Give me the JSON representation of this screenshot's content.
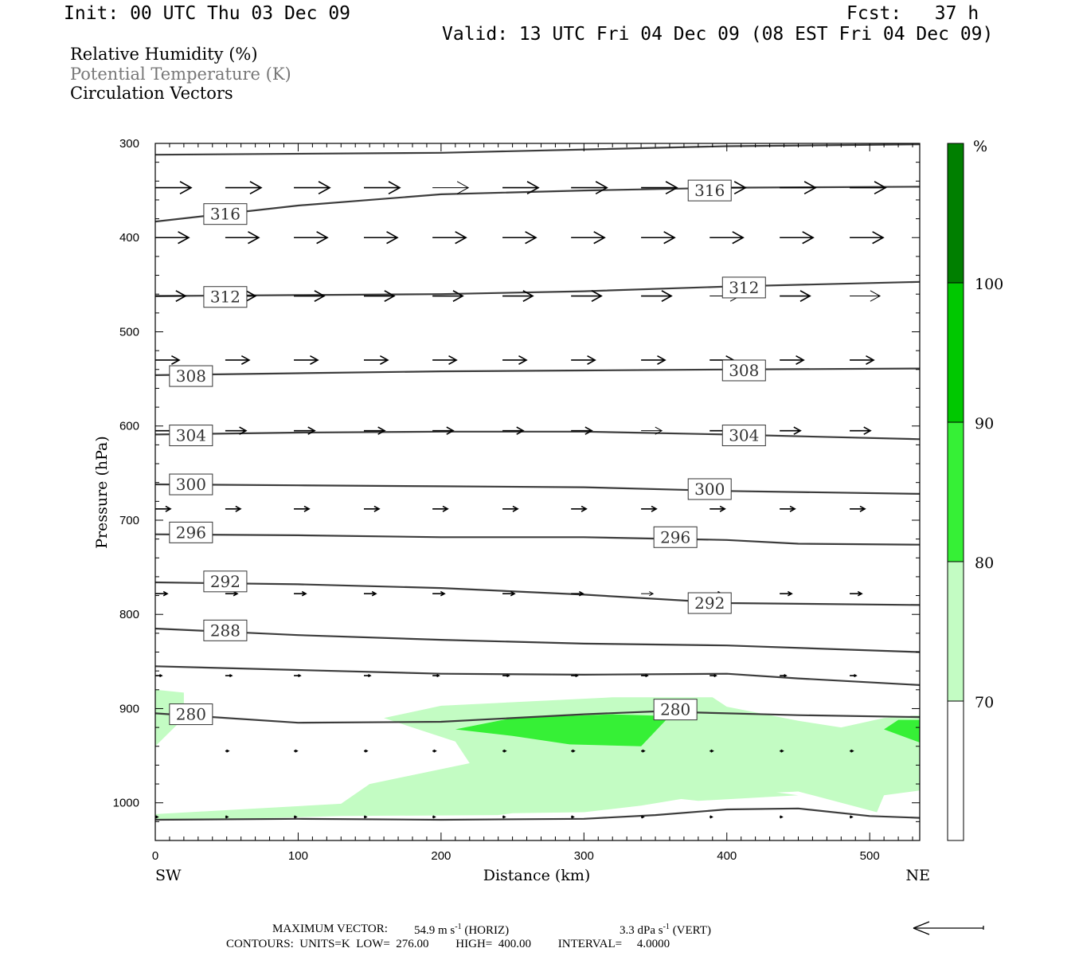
{
  "header": {
    "init": "Init: 00 UTC Thu 03 Dec 09",
    "fcst": "Fcst:   37 h",
    "valid": "Valid: 13 UTC Fri 04 Dec 09 (08 EST Fri 04 Dec 09)"
  },
  "fields": {
    "rh": "Relative Humidity (%)",
    "theta": "Potential Temperature (K)",
    "vectors": "Circulation Vectors"
  },
  "footer": {
    "maxvec_label": "MAXIMUM VECTOR:",
    "maxvec_horiz": "54.9 m s",
    "horiz_tag": "(HORIZ)",
    "maxvec_vert": "3.3 dPa s",
    "vert_tag": "(VERT)",
    "exp": "-1",
    "contours": "CONTOURS:  UNITS=K  LOW=  276.00         HIGH=  400.00         INTERVAL=     4.0000"
  },
  "colors": {
    "rh70": "#c3fcc3",
    "rh80": "#36f036",
    "rh90": "#00c800",
    "rh100": "#007f00",
    "contour": "#3c3c3c"
  },
  "chart_data": {
    "type": "cross-section",
    "xlabel": "Distance (km)",
    "ylabel": "Pressure (hPa)",
    "xlim": [
      0,
      535
    ],
    "ylim": [
      1040,
      300
    ],
    "x_ticks": [
      0,
      100,
      200,
      300,
      400,
      500
    ],
    "y_ticks": [
      300,
      400,
      500,
      600,
      700,
      800,
      900,
      1000
    ],
    "end_labels": {
      "left": "SW",
      "right": "NE"
    },
    "colorbar": {
      "unit": "%",
      "levels": [
        70,
        80,
        90,
        100
      ],
      "level_labels": [
        "70",
        "80",
        "90",
        "100"
      ]
    },
    "contour_labels": [
      {
        "text": "316",
        "x": 49,
        "p": 375
      },
      {
        "text": "316",
        "x": 388,
        "p": 350
      },
      {
        "text": "312",
        "x": 49,
        "p": 463
      },
      {
        "text": "312",
        "x": 412,
        "p": 453
      },
      {
        "text": "308",
        "x": 25,
        "p": 547
      },
      {
        "text": "308",
        "x": 412,
        "p": 541
      },
      {
        "text": "304",
        "x": 25,
        "p": 610
      },
      {
        "text": "304",
        "x": 412,
        "p": 610
      },
      {
        "text": "300",
        "x": 25,
        "p": 662
      },
      {
        "text": "300",
        "x": 388,
        "p": 667
      },
      {
        "text": "296",
        "x": 25,
        "p": 713
      },
      {
        "text": "296",
        "x": 364,
        "p": 718
      },
      {
        "text": "292",
        "x": 49,
        "p": 765
      },
      {
        "text": "292",
        "x": 388,
        "p": 788
      },
      {
        "text": "288",
        "x": 49,
        "p": 817
      },
      {
        "text": "280",
        "x": 25,
        "p": 906
      },
      {
        "text": "280",
        "x": 364,
        "p": 901
      }
    ],
    "isentropes": [
      {
        "theta": 320,
        "points": [
          [
            0,
            312
          ],
          [
            200,
            310
          ],
          [
            400,
            303
          ],
          [
            535,
            301
          ]
        ]
      },
      {
        "theta": 316,
        "points": [
          [
            0,
            383
          ],
          [
            100,
            366
          ],
          [
            200,
            354
          ],
          [
            300,
            350
          ],
          [
            400,
            347
          ],
          [
            535,
            346
          ]
        ]
      },
      {
        "theta": 312,
        "points": [
          [
            0,
            462
          ],
          [
            100,
            461
          ],
          [
            200,
            460
          ],
          [
            300,
            457
          ],
          [
            400,
            452
          ],
          [
            535,
            447
          ]
        ]
      },
      {
        "theta": 308,
        "points": [
          [
            0,
            546
          ],
          [
            100,
            544
          ],
          [
            200,
            542
          ],
          [
            300,
            541
          ],
          [
            400,
            540
          ],
          [
            535,
            539
          ]
        ]
      },
      {
        "theta": 304,
        "points": [
          [
            0,
            609
          ],
          [
            100,
            607
          ],
          [
            200,
            606
          ],
          [
            300,
            606
          ],
          [
            400,
            609
          ],
          [
            535,
            614
          ]
        ]
      },
      {
        "theta": 300,
        "points": [
          [
            0,
            662
          ],
          [
            100,
            663
          ],
          [
            200,
            664
          ],
          [
            300,
            665
          ],
          [
            400,
            669
          ],
          [
            535,
            672
          ]
        ]
      },
      {
        "theta": 296,
        "points": [
          [
            0,
            715
          ],
          [
            100,
            716
          ],
          [
            200,
            718
          ],
          [
            300,
            718
          ],
          [
            400,
            721
          ],
          [
            450,
            725
          ],
          [
            535,
            726
          ]
        ]
      },
      {
        "theta": 292,
        "points": [
          [
            0,
            766
          ],
          [
            100,
            768
          ],
          [
            200,
            772
          ],
          [
            300,
            779
          ],
          [
            400,
            788
          ],
          [
            535,
            790
          ]
        ]
      },
      {
        "theta": 288,
        "points": [
          [
            0,
            815
          ],
          [
            100,
            822
          ],
          [
            200,
            827
          ],
          [
            300,
            831
          ],
          [
            400,
            833
          ],
          [
            535,
            840
          ]
        ]
      },
      {
        "theta": 284,
        "points": [
          [
            0,
            855
          ],
          [
            100,
            859
          ],
          [
            200,
            863
          ],
          [
            300,
            864
          ],
          [
            400,
            863
          ],
          [
            450,
            868
          ],
          [
            535,
            875
          ]
        ]
      },
      {
        "theta": 280,
        "points": [
          [
            0,
            905
          ],
          [
            100,
            915
          ],
          [
            200,
            914
          ],
          [
            300,
            906
          ],
          [
            350,
            903
          ],
          [
            450,
            907
          ],
          [
            535,
            909
          ]
        ]
      },
      {
        "theta": 276,
        "points": [
          [
            0,
            1018
          ],
          [
            100,
            1017
          ],
          [
            200,
            1018
          ],
          [
            300,
            1017
          ],
          [
            350,
            1013
          ],
          [
            400,
            1007
          ],
          [
            450,
            1006
          ],
          [
            500,
            1014
          ],
          [
            535,
            1016
          ]
        ]
      }
    ],
    "rh_regions": [
      {
        "level": 70,
        "polygon": [
          [
            0,
            880
          ],
          [
            20,
            883
          ],
          [
            20,
            910
          ],
          [
            0,
            940
          ]
        ]
      },
      {
        "level": 70,
        "polygon": [
          [
            0,
            1012
          ],
          [
            130,
            1001
          ],
          [
            150,
            980
          ],
          [
            220,
            958
          ],
          [
            210,
            935
          ],
          [
            160,
            910
          ],
          [
            200,
            897
          ],
          [
            320,
            888
          ],
          [
            390,
            888
          ],
          [
            400,
            898
          ],
          [
            450,
            913
          ],
          [
            480,
            920
          ],
          [
            510,
            910
          ],
          [
            535,
            907
          ],
          [
            535,
            987
          ],
          [
            510,
            992
          ],
          [
            505,
            1010
          ],
          [
            450,
            988
          ],
          [
            380,
            993
          ],
          [
            340,
            1003
          ],
          [
            300,
            1010
          ],
          [
            250,
            1011
          ],
          [
            240,
            1013
          ],
          [
            130,
            1014
          ],
          [
            60,
            1017
          ],
          [
            0,
            1018
          ]
        ]
      },
      {
        "level": 70,
        "polygon": [
          [
            320,
            988
          ],
          [
            430,
            988
          ],
          [
            450,
            992
          ],
          [
            380,
            998
          ]
        ]
      },
      {
        "level": 80,
        "polygon": [
          [
            210,
            922
          ],
          [
            250,
            910
          ],
          [
            320,
            906
          ],
          [
            360,
            908
          ],
          [
            340,
            940
          ],
          [
            290,
            938
          ],
          [
            250,
            929
          ]
        ]
      },
      {
        "level": 80,
        "polygon": [
          [
            510,
            922
          ],
          [
            520,
            912
          ],
          [
            535,
            912
          ],
          [
            535,
            936
          ]
        ]
      }
    ],
    "vector_rows": [
      {
        "p": 347,
        "xs": [
          0,
          49,
          97,
          146,
          194,
          243,
          291,
          340,
          388,
          437,
          486
        ],
        "len": 45,
        "thin": [
          4
        ]
      },
      {
        "p": 400,
        "xs": [
          0,
          49,
          97,
          146,
          194,
          243,
          291,
          340,
          388,
          437,
          486
        ],
        "len": 42
      },
      {
        "p": 462,
        "xs": [
          0,
          49,
          97,
          146,
          194,
          243,
          291,
          340,
          388,
          437,
          486
        ],
        "len": 38,
        "thin": [
          8,
          10
        ]
      },
      {
        "p": 530,
        "xs": [
          0,
          49,
          97,
          146,
          194,
          243,
          291,
          340,
          388,
          437,
          486
        ],
        "len": 30
      },
      {
        "p": 605,
        "xs": [
          0,
          49,
          97,
          146,
          194,
          243,
          291,
          340,
          388,
          437,
          486
        ],
        "len": 26,
        "thin": [
          7
        ]
      },
      {
        "p": 688,
        "xs": [
          0,
          49,
          97,
          146,
          194,
          243,
          291,
          340,
          388,
          437,
          486
        ],
        "len": 19
      },
      {
        "p": 778,
        "xs": [
          0,
          49,
          97,
          146,
          194,
          243,
          291,
          340,
          388,
          437,
          486
        ],
        "len": 15,
        "thin": [
          7
        ]
      },
      {
        "p": 865,
        "xs": [
          0,
          49,
          97,
          146,
          194,
          243,
          291,
          340,
          388,
          437,
          486
        ],
        "len": 8
      },
      {
        "p": 945,
        "xs": [
          49,
          97,
          146,
          194,
          243,
          291,
          340,
          388,
          437,
          486
        ],
        "len": 4
      },
      {
        "p": 1015,
        "xs": [
          0,
          49,
          97,
          146,
          194,
          243,
          291,
          340,
          388,
          437,
          486
        ],
        "len": 3
      }
    ]
  }
}
